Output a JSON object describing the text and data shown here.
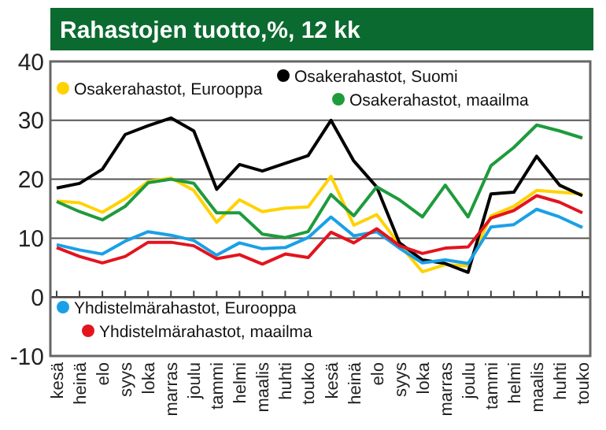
{
  "chart_data": {
    "type": "line",
    "title": "Rahastojen tuotto,%, 12 kk",
    "categories": [
      "kesä",
      "heinä",
      "elo",
      "syys",
      "loka",
      "marras",
      "joulu",
      "tammi",
      "helmi",
      "maalis",
      "huhti",
      "touko",
      "kesä",
      "heinä",
      "elo",
      "syys",
      "loka",
      "marras",
      "joulu",
      "tammi",
      "helmi",
      "maalis",
      "huhti",
      "touko"
    ],
    "ylim": [
      -10,
      40
    ],
    "yticks": [
      -10,
      0,
      10,
      20,
      30,
      40
    ],
    "grid": "y",
    "legend": "top",
    "marker": "none",
    "line_style": "solid",
    "series": [
      {
        "name": "Osakerahastot, Eurooppa",
        "color": "#ffd200",
        "values": [
          16.3,
          16,
          14.4,
          16.7,
          19.6,
          20.2,
          18.1,
          12.7,
          16.5,
          14.5,
          15.1,
          15.3,
          20.5,
          12.2,
          14,
          8.9,
          4.3,
          5.5,
          5.3,
          13.8,
          15.4,
          18.1,
          17.8,
          17.5
        ]
      },
      {
        "name": "Osakerahastot, Suomi",
        "color": "#000000",
        "values": [
          18.5,
          19.3,
          21.7,
          27.6,
          29.1,
          30.4,
          28.2,
          18.3,
          22.5,
          21.4,
          22.7,
          24,
          30,
          23.1,
          18.7,
          9.2,
          6.3,
          5.7,
          4.2,
          17.5,
          17.8,
          23.9,
          19,
          17.2
        ]
      },
      {
        "name": "Osakerahastot, maailma",
        "color": "#1e9b3c",
        "values": [
          16.2,
          14.5,
          13.1,
          15.4,
          19.4,
          20,
          19.3,
          14.3,
          14.3,
          10.7,
          10.1,
          11.1,
          17.4,
          13.8,
          18.7,
          16.5,
          13.6,
          19,
          13.6,
          22.3,
          25.4,
          29.2,
          28.2,
          27
        ]
      },
      {
        "name": "Yhdistelmärahastot, Eurooppa",
        "color": "#1aa0e6",
        "values": [
          8.9,
          8,
          7.3,
          9.5,
          11.1,
          10.5,
          9.6,
          7.1,
          9.2,
          8.2,
          8.4,
          10.1,
          13.6,
          10.4,
          11.1,
          8.3,
          5.8,
          6.3,
          5.7,
          11.9,
          12.3,
          14.9,
          13.6,
          11.8
        ]
      },
      {
        "name": "Yhdistelmärahastot, maailma",
        "color": "#e3141e",
        "values": [
          8.4,
          6.9,
          5.8,
          6.9,
          9.3,
          9.3,
          8.7,
          6.5,
          7.2,
          5.6,
          7.3,
          6.7,
          11,
          9.2,
          11.6,
          8.7,
          7.4,
          8.3,
          8.5,
          13.4,
          14.7,
          17.2,
          16.1,
          14.3
        ]
      }
    ]
  }
}
